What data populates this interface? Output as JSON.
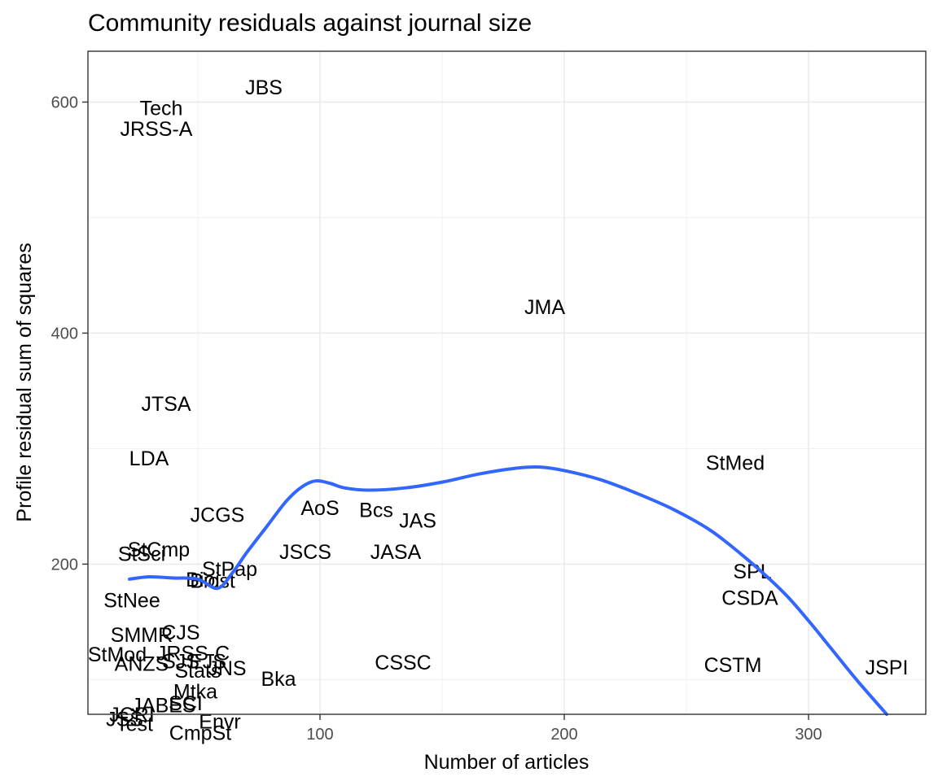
{
  "chart_data": {
    "type": "scatter",
    "title": "Community residuals against journal size",
    "xlabel": "Number of articles",
    "ylabel": "Profile residual sum of squares",
    "xlim": [
      5,
      348
    ],
    "ylim": [
      70,
      644
    ],
    "x_ticks": [
      100,
      200,
      300
    ],
    "y_ticks": [
      200,
      400,
      600
    ],
    "grid": true,
    "legend": "none",
    "point_style": "text labels",
    "points": [
      {
        "label": "JBS",
        "x": 77,
        "y": 613
      },
      {
        "label": "Tech",
        "x": 35,
        "y": 595
      },
      {
        "label": "JRSS-A",
        "x": 33,
        "y": 577
      },
      {
        "label": "JMA",
        "x": 192,
        "y": 423
      },
      {
        "label": "JTSA",
        "x": 37,
        "y": 339
      },
      {
        "label": "LDA",
        "x": 30,
        "y": 292
      },
      {
        "label": "StMed",
        "x": 270,
        "y": 288
      },
      {
        "label": "AoS",
        "x": 100,
        "y": 249
      },
      {
        "label": "Bcs",
        "x": 123,
        "y": 247
      },
      {
        "label": "JAS",
        "x": 140,
        "y": 238
      },
      {
        "label": "JCGS",
        "x": 58,
        "y": 243
      },
      {
        "label": "StCmp",
        "x": 34,
        "y": 213
      },
      {
        "label": "StSci",
        "x": 27,
        "y": 209
      },
      {
        "label": "JSCS",
        "x": 94,
        "y": 211
      },
      {
        "label": "JASA",
        "x": 131,
        "y": 211
      },
      {
        "label": "StPap",
        "x": 63,
        "y": 196
      },
      {
        "label": "Biost",
        "x": 56,
        "y": 186
      },
      {
        "label": "Bioi",
        "x": 52,
        "y": 187
      },
      {
        "label": "StNee",
        "x": 23,
        "y": 169
      },
      {
        "label": "SPL",
        "x": 277,
        "y": 194
      },
      {
        "label": "CSDA",
        "x": 276,
        "y": 171
      },
      {
        "label": "SMMR",
        "x": 27,
        "y": 139
      },
      {
        "label": "CJS",
        "x": 43,
        "y": 141
      },
      {
        "label": "StMod",
        "x": 17,
        "y": 122
      },
      {
        "label": "JRSS-C",
        "x": 48,
        "y": 123
      },
      {
        "label": "ANZS",
        "x": 27,
        "y": 114
      },
      {
        "label": "SJS",
        "x": 43,
        "y": 116
      },
      {
        "label": "EJS",
        "x": 54,
        "y": 116
      },
      {
        "label": "CSSC",
        "x": 134,
        "y": 115
      },
      {
        "label": "CSTM",
        "x": 269,
        "y": 113
      },
      {
        "label": "JSPI",
        "x": 332,
        "y": 111
      },
      {
        "label": "Stats",
        "x": 50,
        "y": 108
      },
      {
        "label": "JNS",
        "x": 62,
        "y": 110
      },
      {
        "label": "Bka",
        "x": 83,
        "y": 101
      },
      {
        "label": "Mtka",
        "x": 49,
        "y": 90
      },
      {
        "label": "JABES",
        "x": 36,
        "y": 78
      },
      {
        "label": "SCI",
        "x": 45,
        "y": 80
      },
      {
        "label": "JSS",
        "x": 20,
        "y": 66
      },
      {
        "label": "JCRI",
        "x": 23,
        "y": 70
      },
      {
        "label": "Test",
        "x": 24,
        "y": 62
      },
      {
        "label": "Envr",
        "x": 59,
        "y": 64
      },
      {
        "label": "CmpSt",
        "x": 51,
        "y": 54
      }
    ],
    "smooth_curve": {
      "color": "#3366FF",
      "x": [
        22,
        30,
        40,
        50,
        58,
        64,
        70,
        78,
        86,
        92,
        98,
        104,
        110,
        120,
        135,
        150,
        165,
        180,
        190,
        200,
        215,
        230,
        245,
        260,
        275,
        290,
        300,
        310,
        320,
        332
      ],
      "y": [
        187,
        189,
        188,
        187,
        179,
        192,
        210,
        232,
        254,
        266,
        272,
        270,
        266,
        264,
        266,
        271,
        278,
        283,
        284,
        281,
        273,
        261,
        247,
        229,
        204,
        175,
        151,
        125,
        99,
        70
      ]
    }
  }
}
